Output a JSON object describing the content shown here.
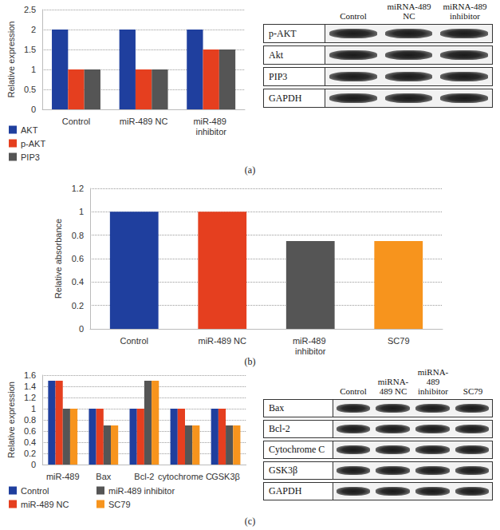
{
  "chart_data": [
    {
      "type": "bar",
      "title": "(a)",
      "y_label": "Relative expression",
      "categories": [
        "Control",
        "miR-489 NC",
        "miR-489 inhibitor"
      ],
      "series": [
        {
          "name": "AKT",
          "color": "#1f3f9e",
          "values": [
            2,
            2,
            2
          ]
        },
        {
          "name": "p-AKT",
          "color": "#e53f1f",
          "values": [
            1,
            1,
            1.5
          ]
        },
        {
          "name": "PIP3",
          "color": "#555555",
          "values": [
            1,
            1,
            1.5
          ]
        }
      ],
      "ylim": [
        0,
        2.5
      ],
      "yticks": [
        0,
        0.5,
        1,
        1.5,
        2,
        2.5
      ],
      "grid": true,
      "legend": "bottom"
    },
    {
      "type": "bar",
      "title": "(b)",
      "y_label": "Relative absorbance",
      "categories": [
        "Control",
        "miR-489 NC",
        "miR-489 inhibitor",
        "SC79"
      ],
      "values": [
        1,
        1,
        0.75,
        0.75
      ],
      "colors": [
        "#1f3f9e",
        "#e53f1f",
        "#555555",
        "#f7941d"
      ],
      "ylim": [
        0,
        1.2
      ],
      "yticks": [
        0,
        0.2,
        0.4,
        0.6,
        0.8,
        1,
        1.2
      ],
      "grid": true
    },
    {
      "type": "bar",
      "title": "(c)",
      "y_label": "Relative expression",
      "categories": [
        "miR-489",
        "Bax",
        "Bcl-2",
        "cytochrome C",
        "GSK3β"
      ],
      "series": [
        {
          "name": "Control",
          "color": "#1f3f9e",
          "values": [
            1.5,
            1,
            1,
            1,
            1
          ]
        },
        {
          "name": "miR-489 NC",
          "color": "#e53f1f",
          "values": [
            1.5,
            1,
            1,
            1,
            1
          ]
        },
        {
          "name": "miR-489 inhibitor",
          "color": "#555555",
          "values": [
            1,
            0.7,
            1.5,
            0.7,
            0.7
          ]
        },
        {
          "name": "SC79",
          "color": "#f7941d",
          "values": [
            1,
            0.7,
            1.5,
            0.7,
            0.7
          ]
        }
      ],
      "ylim": [
        0,
        1.6
      ],
      "yticks": [
        0,
        0.2,
        0.4,
        0.6,
        0.8,
        1,
        1.2,
        1.4,
        1.6
      ],
      "grid": true,
      "legend": "bottom"
    }
  ],
  "blots": [
    {
      "lanes": [
        "Control",
        "miRNA-489 NC",
        "miRNA-489 inhibitor"
      ],
      "rows": [
        "p-AKT",
        "Akt",
        "PIP3",
        "GAPDH"
      ]
    },
    {
      "lanes": [
        "Control",
        "miRNA-489 NC",
        "miRNA-489 inhibitor",
        "SC79"
      ],
      "rows": [
        "Bax",
        "Bcl-2",
        "Cytochrome C",
        "GSK3β",
        "GAPDH"
      ]
    }
  ]
}
